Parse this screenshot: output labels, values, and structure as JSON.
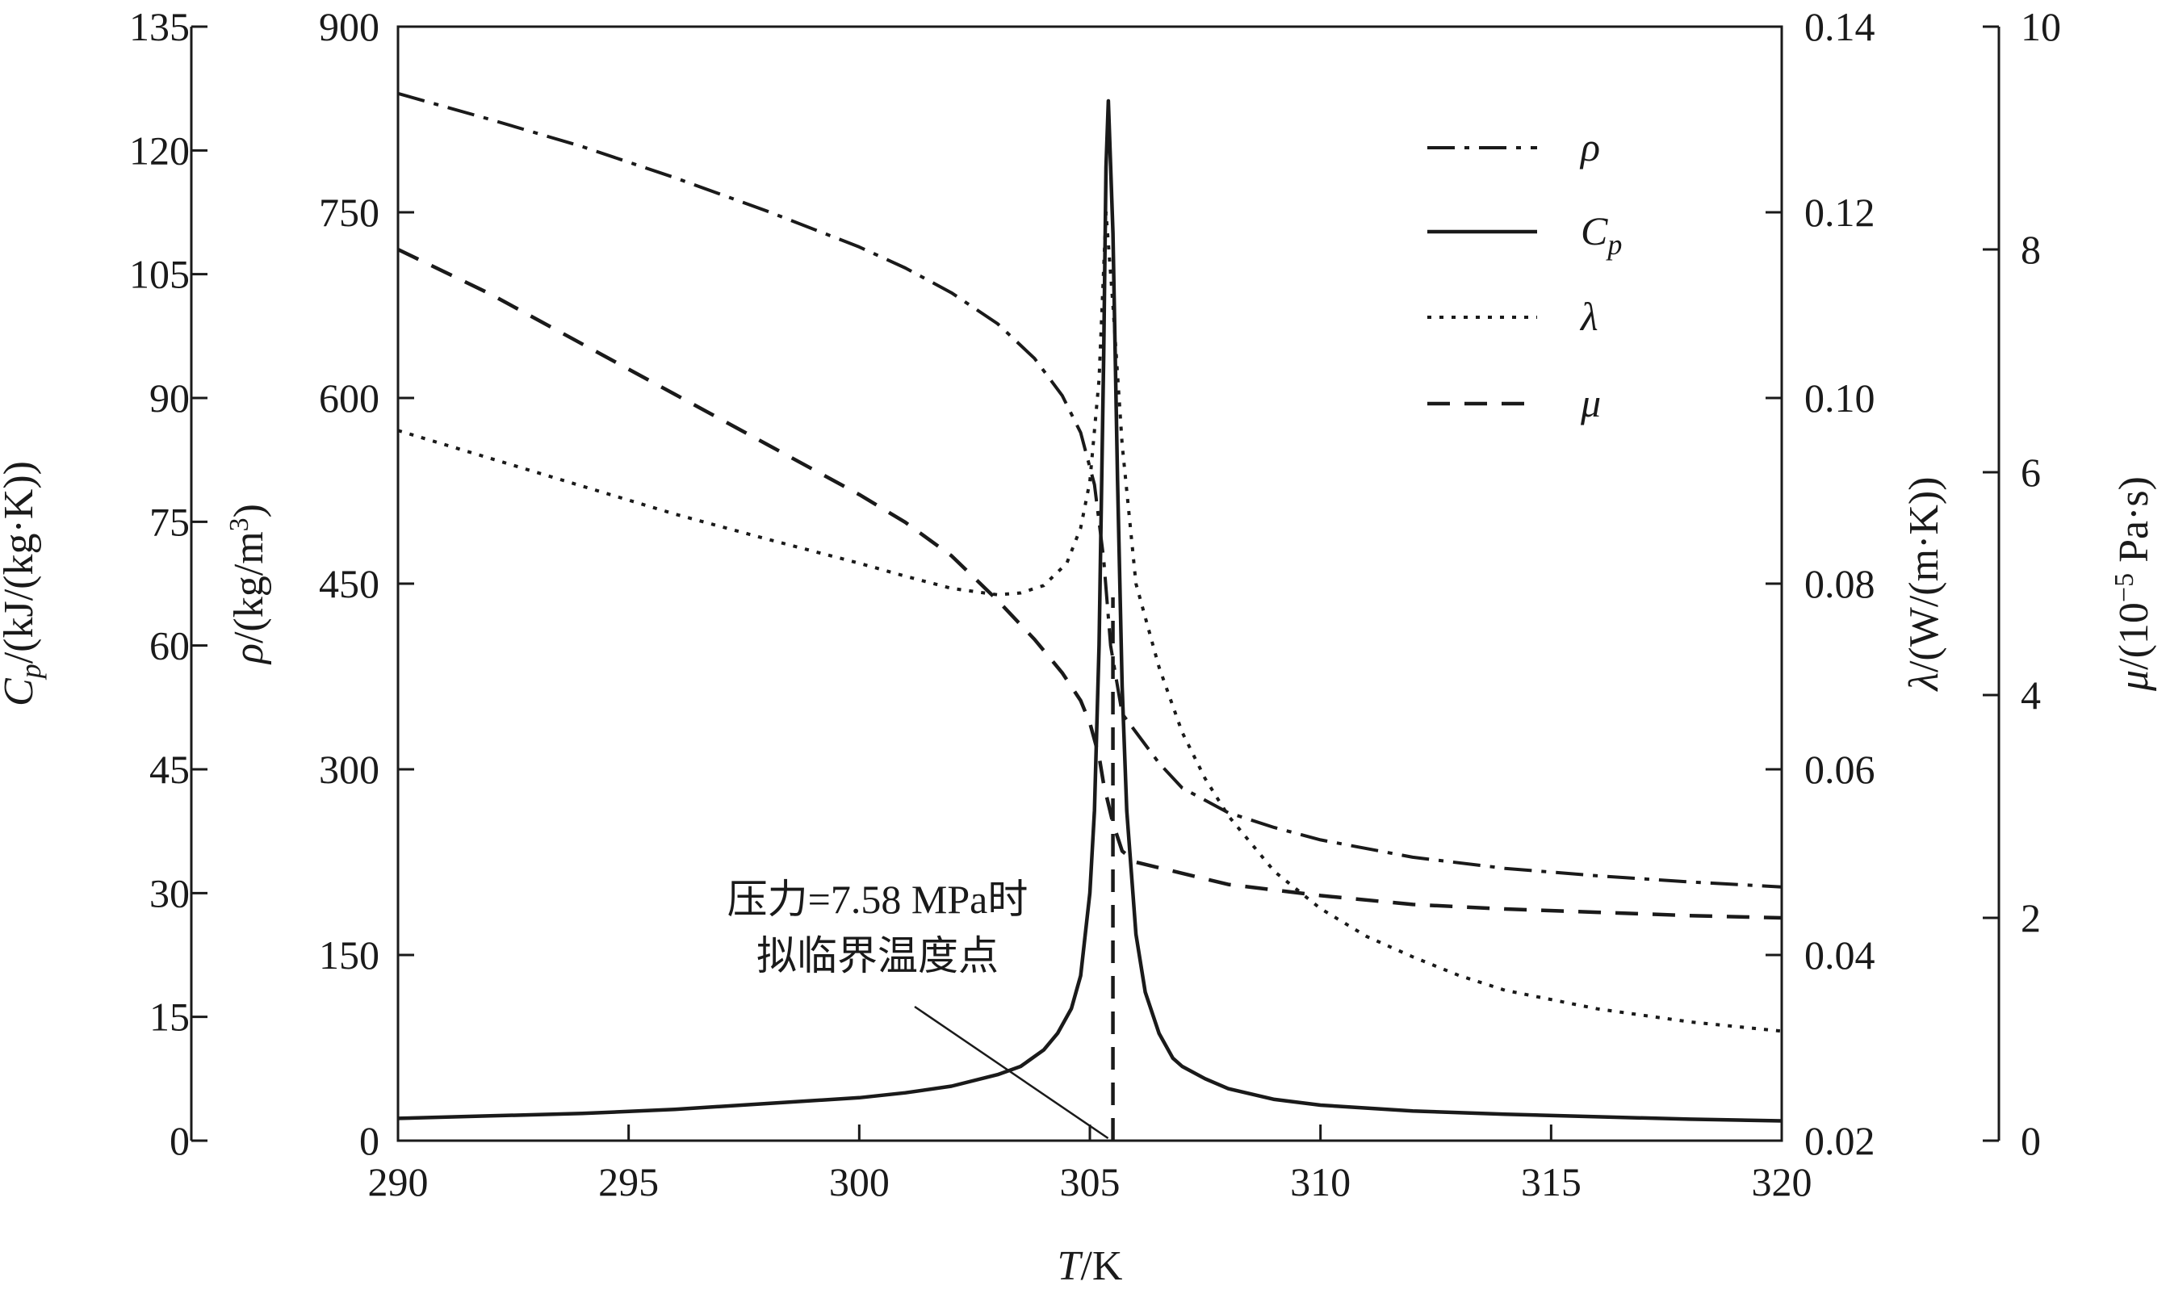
{
  "chart_data": {
    "type": "line",
    "xlabel": "T/K",
    "x_ticks": [
      "290",
      "295",
      "300",
      "305",
      "310",
      "315",
      "320"
    ],
    "xlim": [
      290,
      320
    ],
    "axes": [
      {
        "id": "cp",
        "label": "Cp/(kJ/(kg·K))",
        "ylim": [
          0,
          135
        ],
        "ticks": [
          "0",
          "15",
          "30",
          "45",
          "60",
          "75",
          "90",
          "105",
          "120",
          "135"
        ]
      },
      {
        "id": "rho",
        "label": "ρ/(kg/m3)",
        "ylim": [
          0,
          900
        ],
        "ticks": [
          "0",
          "150",
          "300",
          "450",
          "600",
          "750",
          "900"
        ]
      },
      {
        "id": "lambda",
        "label": "λ/(W/(m·K))",
        "ylim": [
          0.02,
          0.14
        ],
        "ticks": [
          "0.02",
          "0.04",
          "0.06",
          "0.08",
          "0.10",
          "0.12",
          "0.14"
        ]
      },
      {
        "id": "mu",
        "label": "μ/(10−5 Pa·s)",
        "ylim": [
          0,
          10
        ],
        "ticks": [
          "0",
          "2",
          "4",
          "6",
          "8",
          "10"
        ]
      }
    ],
    "series": [
      {
        "name": "ρ",
        "axis": "rho",
        "style": "dashdot",
        "x": [
          290,
          292,
          294,
          296,
          298,
          300,
          301,
          302,
          303,
          303.8,
          304.4,
          304.8,
          305.1,
          305.3,
          305.45,
          305.7,
          306,
          306.5,
          307,
          308,
          309,
          310,
          312,
          314,
          316,
          318,
          320
        ],
        "y": [
          846,
          825,
          803,
          778,
          751,
          722,
          705,
          685,
          660,
          632,
          602,
          572,
          530,
          470,
          400,
          345,
          330,
          305,
          285,
          265,
          253,
          243,
          229,
          220,
          214,
          209,
          205
        ]
      },
      {
        "name": "Cp",
        "axis": "cp",
        "style": "solid",
        "x": [
          290,
          292,
          294,
          296,
          298,
          300,
          301,
          302,
          303,
          303.5,
          304,
          304.3,
          304.6,
          304.8,
          305,
          305.1,
          305.2,
          305.3,
          305.35,
          305.4,
          305.5,
          305.6,
          305.7,
          305.8,
          306,
          306.2,
          306.5,
          306.8,
          307,
          307.5,
          308,
          309,
          310,
          312,
          314,
          316,
          318,
          320
        ],
        "y": [
          2.7,
          3.0,
          3.3,
          3.8,
          4.5,
          5.2,
          5.8,
          6.6,
          8.0,
          9.0,
          11.0,
          13.0,
          16.0,
          20.0,
          30.0,
          40.0,
          60.0,
          95.0,
          118.0,
          126.0,
          110.0,
          80.0,
          55.0,
          40.0,
          25.0,
          18.0,
          13.0,
          10.0,
          9.0,
          7.5,
          6.3,
          5.0,
          4.3,
          3.6,
          3.2,
          2.9,
          2.6,
          2.4
        ]
      },
      {
        "name": "λ",
        "axis": "lambda",
        "style": "dotted",
        "x": [
          290,
          292,
          294,
          296,
          298,
          300,
          301,
          302,
          303,
          303.5,
          304,
          304.5,
          304.8,
          305,
          305.2,
          305.35,
          305.5,
          305.7,
          306,
          306.5,
          307,
          307.5,
          308,
          308.5,
          309,
          310,
          311,
          312,
          313,
          314,
          316,
          318,
          320
        ],
        "y": [
          0.0965,
          0.0935,
          0.0905,
          0.0875,
          0.0848,
          0.0822,
          0.0808,
          0.0795,
          0.0788,
          0.079,
          0.0798,
          0.0822,
          0.086,
          0.091,
          0.102,
          0.12,
          0.11,
          0.095,
          0.08,
          0.071,
          0.064,
          0.059,
          0.055,
          0.052,
          0.049,
          0.045,
          0.042,
          0.0398,
          0.0378,
          0.0362,
          0.0342,
          0.0328,
          0.0318
        ]
      },
      {
        "name": "μ",
        "axis": "mu",
        "style": "dashed",
        "x": [
          290,
          292,
          294,
          296,
          298,
          300,
          301,
          302,
          303,
          303.8,
          304.4,
          304.8,
          305,
          305.2,
          305.3,
          305.5,
          305.7,
          306,
          306.5,
          307,
          308,
          309,
          310,
          312,
          314,
          316,
          318,
          320
        ],
        "y": [
          8.0,
          7.6,
          7.15,
          6.7,
          6.25,
          5.8,
          5.55,
          5.25,
          4.85,
          4.5,
          4.2,
          3.95,
          3.75,
          3.45,
          3.2,
          2.85,
          2.6,
          2.5,
          2.45,
          2.4,
          2.3,
          2.25,
          2.2,
          2.12,
          2.08,
          2.05,
          2.02,
          2.0
        ]
      }
    ],
    "legend": {
      "placement": "top-right",
      "items": [
        {
          "label": "ρ",
          "style": "dashdot"
        },
        {
          "label": "Cp",
          "style": "solid"
        },
        {
          "label": "λ",
          "style": "dotted"
        },
        {
          "label": "μ",
          "style": "dashed"
        }
      ]
    },
    "annotation": {
      "line1": "压力=7.58 MPa时",
      "line2": "拟临界温度点",
      "x": 305.5
    },
    "grid": false
  }
}
